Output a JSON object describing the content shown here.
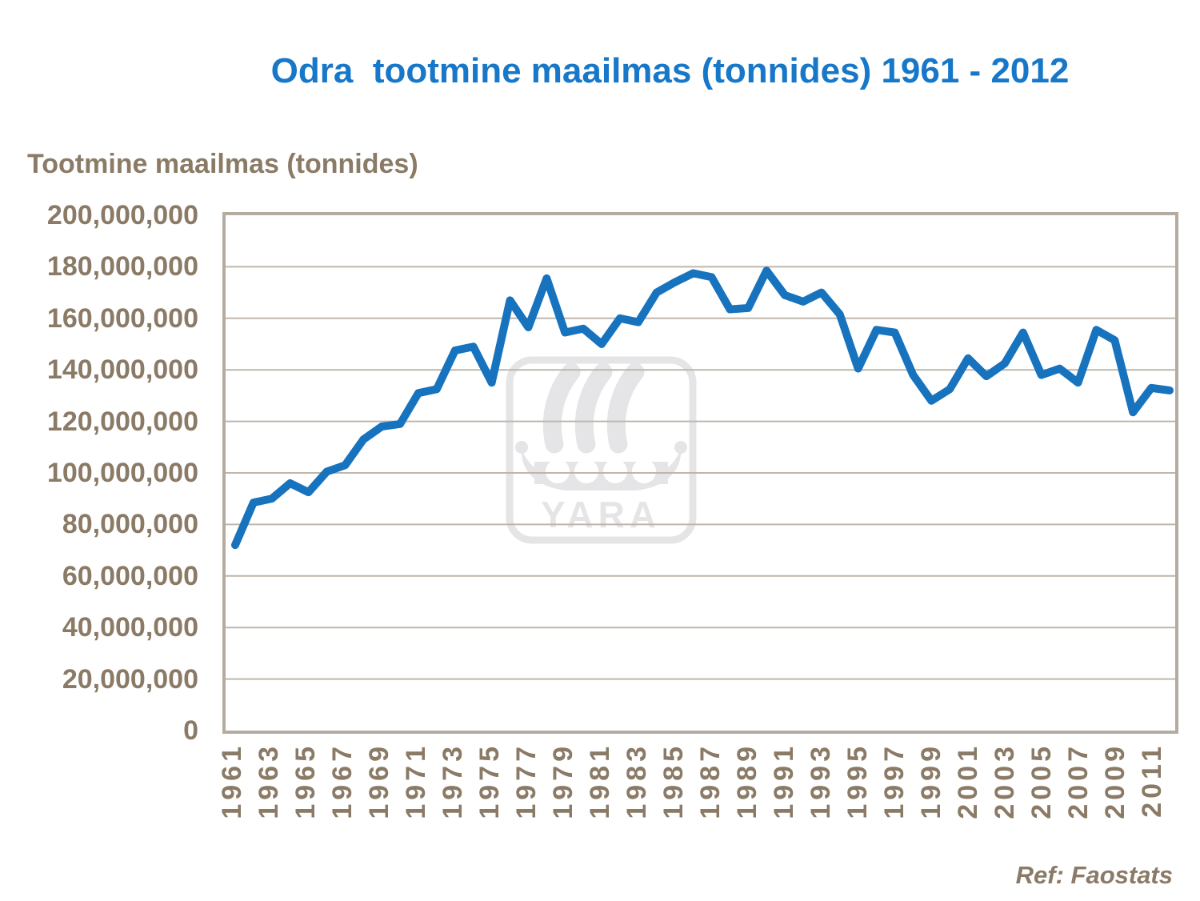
{
  "title": "Odra  tootmine maailmas (tonnides) 1961 - 2012",
  "axis_title": "Tootmine maailmas (tonnides)",
  "ref": "Ref: Faostats",
  "watermark": "YARA",
  "colors": {
    "title": "#1777C8",
    "line": "#1873BE",
    "text_brown": "#8A7A66",
    "gridline": "#BFB6AB",
    "plot_border": "#B5ACA1",
    "watermark": "#E5E5E7"
  },
  "chart_data": {
    "type": "line",
    "title": "Odra  tootmine maailmas (tonnides) 1961 - 2012",
    "xlabel": "",
    "ylabel": "Tootmine maailmas (tonnides)",
    "ylim": [
      0,
      200000000
    ],
    "ytick_step": 20000000,
    "yticks": [
      "200,000,000",
      "180,000,000",
      "160,000,000",
      "140,000,000",
      "120,000,000",
      "100,000,000",
      "80,000,000",
      "60,000,000",
      "40,000,000",
      "20,000,000",
      "0"
    ],
    "xticks": [
      1961,
      1963,
      1965,
      1967,
      1969,
      1971,
      1973,
      1975,
      1977,
      1979,
      1981,
      1983,
      1985,
      1987,
      1989,
      1991,
      1993,
      1995,
      1997,
      1999,
      2001,
      2003,
      2005,
      2007,
      2009,
      2011
    ],
    "grid": "horizontal",
    "legend": "none",
    "series_name": "Tootmine maailmas (tonnides)",
    "x": [
      1961,
      1962,
      1963,
      1964,
      1965,
      1966,
      1967,
      1968,
      1969,
      1970,
      1971,
      1972,
      1973,
      1974,
      1975,
      1976,
      1977,
      1978,
      1979,
      1980,
      1981,
      1982,
      1983,
      1984,
      1985,
      1986,
      1987,
      1988,
      1989,
      1990,
      1991,
      1992,
      1993,
      1994,
      1995,
      1996,
      1997,
      1998,
      1999,
      2000,
      2001,
      2002,
      2003,
      2004,
      2005,
      2006,
      2007,
      2008,
      2009,
      2010,
      2011,
      2012
    ],
    "values": [
      72000000,
      88500000,
      90000000,
      96000000,
      92500000,
      100500000,
      103000000,
      113000000,
      118000000,
      119000000,
      131000000,
      132500000,
      147500000,
      149000000,
      135000000,
      167000000,
      156500000,
      175500000,
      154500000,
      156000000,
      150000000,
      160000000,
      158500000,
      170000000,
      174000000,
      177500000,
      176000000,
      163500000,
      164000000,
      178500000,
      169000000,
      166500000,
      170000000,
      161500000,
      140500000,
      155500000,
      154500000,
      138000000,
      128000000,
      132500000,
      144500000,
      137500000,
      142500000,
      154500000,
      138000000,
      140500000,
      135000000,
      155500000,
      151500000,
      123500000,
      133000000,
      132000000
    ]
  }
}
